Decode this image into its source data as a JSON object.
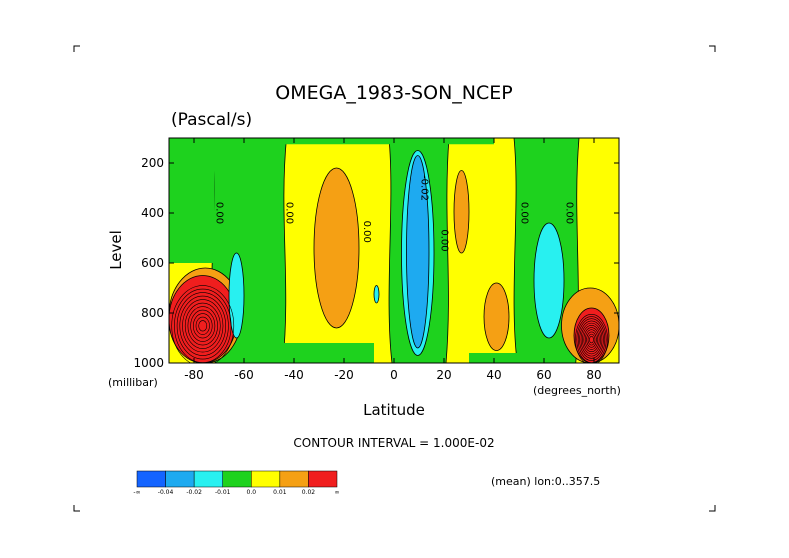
{
  "chart_data": {
    "type": "heatmap",
    "title": "OMEGA_1983-SON_NCEP",
    "units": "(Pascal/s)",
    "xlabel": "Latitude",
    "ylabel": "Level",
    "x_unit_label": "(degrees_north)",
    "y_unit_label": "(millibar)",
    "xlim": [
      -90,
      90
    ],
    "ylim": [
      1000,
      100
    ],
    "x_ticks": [
      {
        "value": -80,
        "label": "-80"
      },
      {
        "value": -60,
        "label": "-60"
      },
      {
        "value": -40,
        "label": "-40"
      },
      {
        "value": -20,
        "label": "-20"
      },
      {
        "value": 0,
        "label": "0"
      },
      {
        "value": 20,
        "label": "20"
      },
      {
        "value": 40,
        "label": "40"
      },
      {
        "value": 60,
        "label": "60"
      },
      {
        "value": 80,
        "label": "80"
      }
    ],
    "y_ticks": [
      {
        "value": 200,
        "label": "200"
      },
      {
        "value": 400,
        "label": "400"
      },
      {
        "value": 600,
        "label": "600"
      },
      {
        "value": 800,
        "label": "800"
      },
      {
        "value": 1000,
        "label": "1000"
      }
    ],
    "contour_interval_text": "CONTOUR INTERVAL = 1.000E-02",
    "mean_text": "(mean) lon:0..357.5",
    "colorbar": {
      "colors": [
        "#1464ff",
        "#1eaaf0",
        "#28f0f0",
        "#1ed21e",
        "#ffff00",
        "#f5a014",
        "#f01e1e"
      ],
      "labels": [
        "-∞",
        "-0.04",
        "-0.02",
        "-0.01",
        "0.0",
        "0.01",
        "0.02",
        "∞"
      ]
    },
    "contour_labels": [
      {
        "lat": -71,
        "lev": 400,
        "label": "0.00"
      },
      {
        "lat": -43,
        "lev": 400,
        "label": "0.00"
      },
      {
        "lat": -12,
        "lev": 475,
        "label": "0.00"
      },
      {
        "lat": 11,
        "lev": 300,
        "label": "-0.02"
      },
      {
        "lat": 19,
        "lev": 510,
        "label": "0.00"
      },
      {
        "lat": 51,
        "lev": 400,
        "label": "0.00"
      },
      {
        "lat": 69,
        "lev": 400,
        "label": "0.00"
      }
    ],
    "regions": [
      {
        "value_class": "0.0",
        "color": "#ffff00",
        "lat": [
          -90,
          90
        ],
        "lev": [
          100,
          1000
        ],
        "shape": "rect"
      },
      {
        "value_class": "-0.01",
        "color": "#1ed21e",
        "lat": [
          -73,
          -43
        ],
        "lev": [
          100,
          1000
        ],
        "shape": "band"
      },
      {
        "value_class": "-0.01",
        "color": "#1ed21e",
        "lat": [
          -2,
          22
        ],
        "lev": [
          100,
          1000
        ],
        "shape": "band"
      },
      {
        "value_class": "-0.01",
        "color": "#1ed21e",
        "lat": [
          -52,
          40
        ],
        "lev": [
          100,
          125
        ],
        "shape": "rect"
      },
      {
        "value_class": "-0.01",
        "color": "#1ed21e",
        "lat": [
          48,
          74
        ],
        "lev": [
          100,
          1000
        ],
        "shape": "band"
      },
      {
        "value_class": "-0.01",
        "color": "#1ed21e",
        "lat": [
          -90,
          -72
        ],
        "lev": [
          100,
          600
        ],
        "shape": "rect"
      },
      {
        "value_class": "-0.01",
        "color": "#1ed21e",
        "lat": [
          -58,
          -8
        ],
        "lev": [
          920,
          1000
        ],
        "shape": "rect"
      },
      {
        "value_class": "-0.01",
        "color": "#1ed21e",
        "lat": [
          30,
          66
        ],
        "lev": [
          960,
          1000
        ],
        "shape": "rect"
      },
      {
        "value_class": "0.01",
        "color": "#f5a014",
        "lat": [
          -32,
          -14
        ],
        "lev": [
          220,
          860
        ],
        "shape": "ellipse"
      },
      {
        "value_class": "0.01",
        "color": "#f5a014",
        "lat": [
          24,
          30
        ],
        "lev": [
          230,
          560
        ],
        "shape": "ellipse"
      },
      {
        "value_class": "0.01",
        "color": "#f5a014",
        "lat": [
          36,
          46
        ],
        "lev": [
          680,
          950
        ],
        "shape": "ellipse"
      },
      {
        "value_class": "0.01",
        "color": "#f5a014",
        "lat": [
          -90,
          -61
        ],
        "lev": [
          620,
          1000
        ],
        "shape": "ellipse"
      },
      {
        "value_class": "0.01",
        "color": "#f5a014",
        "lat": [
          67,
          90
        ],
        "lev": [
          700,
          1000
        ],
        "shape": "ellipse"
      },
      {
        "value_class": "0.02",
        "color": "#f01e1e",
        "lat": [
          -90,
          -63
        ],
        "lev": [
          650,
          1000
        ],
        "shape": "ellipse"
      },
      {
        "value_class": "0.02",
        "color": "#f01e1e",
        "lat": [
          72,
          86
        ],
        "lev": [
          780,
          1000
        ],
        "shape": "ellipse"
      },
      {
        "value_class": "-0.02",
        "color": "#28f0f0",
        "lat": [
          -66,
          -60
        ],
        "lev": [
          560,
          900
        ],
        "shape": "ellipse"
      },
      {
        "value_class": "-0.02",
        "color": "#28f0f0",
        "lat": [
          56,
          68
        ],
        "lev": [
          440,
          900
        ],
        "shape": "ellipse"
      },
      {
        "value_class": "-0.02",
        "color": "#28f0f0",
        "lat": [
          3,
          16
        ],
        "lev": [
          150,
          970
        ],
        "shape": "ellipse"
      },
      {
        "value_class": "-0.02",
        "color": "#28f0f0",
        "lat": [
          -8,
          -6
        ],
        "lev": [
          690,
          760
        ],
        "shape": "ellipse"
      },
      {
        "value_class": "-0.04",
        "color": "#1eaaf0",
        "lat": [
          5,
          14
        ],
        "lev": [
          170,
          940
        ],
        "shape": "ellipse"
      }
    ],
    "grid": false,
    "legend": "colorbar-bottom-left"
  }
}
